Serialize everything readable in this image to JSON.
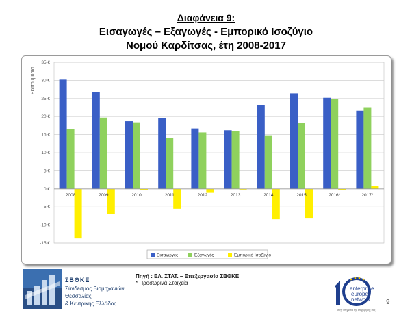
{
  "slide": {
    "title_line1": "Διαφάνεια 9:",
    "title_line2": "Εισαγωγές – Εξαγωγές - Εμπορικό Ισοζύγιο",
    "title_line3": "Νομού Καρδίτσας,  έτη 2008-2017",
    "source": "Πηγή : ΕΛ. ΣΤΑΤ. – Επεξεργασία ΣΒΘΚΕ",
    "note": "* Προσωρινά Στοιχεία",
    "page_number": "9"
  },
  "logo_left": {
    "name": "ΣΒΘΚΕ",
    "line1": "Σύνδεσμος Βιομηχανιών",
    "line2": "Θεσσαλίας",
    "line3": "& Κεντρικής Ελλάδος"
  },
  "logo_right": {
    "line1": "enterprise",
    "line2": "europe",
    "line3": "network",
    "tagline": "στην υπηρεσία της επιχείρησής σας"
  },
  "colors": {
    "imports": "#3a5fc6",
    "exports": "#8fd15d",
    "balance": "#ffef00"
  },
  "chart_data": {
    "type": "bar",
    "ylabel": "Εκατομμύρια",
    "ylim": [
      -15,
      35
    ],
    "yticks": [
      35,
      30,
      25,
      20,
      15,
      10,
      5,
      0,
      -5,
      -10,
      -15
    ],
    "ytick_labels": [
      "35 €",
      "30 €",
      "25 €",
      "20 €",
      "15 €",
      "10 €",
      "5 €",
      "0 €",
      "-5 €",
      "-10 €",
      "-15 €"
    ],
    "grid": true,
    "legend_position": "bottom",
    "categories": [
      "2008",
      "2009",
      "2010",
      "2011",
      "2012",
      "2013",
      "2014",
      "2015",
      "2016*",
      "2017*"
    ],
    "series": [
      {
        "name": "Εισαγωγές",
        "values": [
          30.2,
          26.7,
          18.7,
          19.5,
          16.7,
          16.2,
          23.2,
          26.4,
          25.2,
          21.6
        ]
      },
      {
        "name": "Εξαγωγές",
        "values": [
          16.5,
          19.7,
          18.4,
          14.0,
          15.6,
          16.0,
          14.8,
          18.2,
          24.9,
          22.4
        ]
      },
      {
        "name": "Εμπορικό Ισοζύγιο",
        "values": [
          -13.7,
          -7.0,
          -0.3,
          -5.5,
          -1.1,
          -0.2,
          -8.4,
          -8.2,
          -0.3,
          0.8
        ]
      }
    ]
  }
}
